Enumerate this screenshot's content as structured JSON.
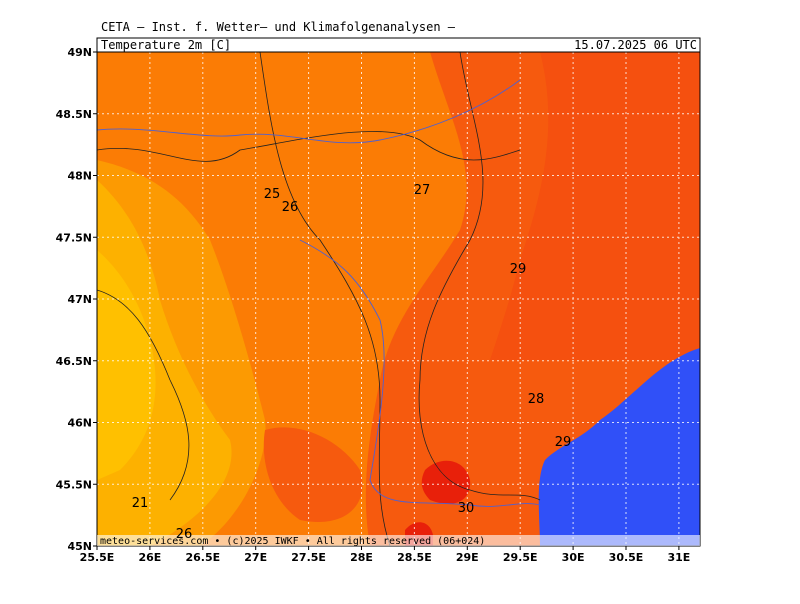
{
  "header": {
    "title": "CETA — Inst. f. Wetter— und Klimafolgenanalysen —",
    "parameter": "Temperature_2m [C]",
    "valid_time": "15.07.2025 06 UTC"
  },
  "footer": "meteo-services.com • (c)2025 IWKF • All rights reserved (06+024)",
  "lat_labels": [
    "49N",
    "48.5N",
    "48N",
    "47.5N",
    "47N",
    "46.5N",
    "46N",
    "45.5N",
    "45N"
  ],
  "lon_labels": [
    "25.5E",
    "26E",
    "26.5E",
    "27E",
    "27.5E",
    "28E",
    "28.5E",
    "29E",
    "29.5E",
    "30E",
    "30.5E",
    "31E"
  ],
  "contour_labels": [
    "25",
    "26",
    "27",
    "29",
    "28",
    "29",
    "30",
    "21",
    "26"
  ]
}
